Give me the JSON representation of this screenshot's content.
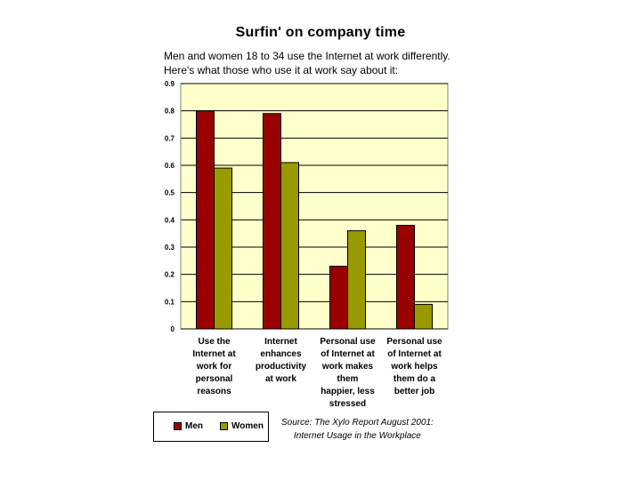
{
  "chart_data": {
    "type": "bar",
    "title": "Surfin' on company time",
    "subtitle_lines": [
      "Men and women 18 to 34 use the Internet at work differently.",
      "Here's what those who use it at work say about it:"
    ],
    "categories": [
      [
        "Use the",
        "Internet at",
        "work for",
        "personal",
        "reasons"
      ],
      [
        "Internet",
        "enhances",
        "productivity",
        "at work"
      ],
      [
        "Personal use",
        "of Internet at",
        "work makes",
        "them",
        "happier, less",
        "stressed"
      ],
      [
        "Personal use",
        "of Internet at",
        "work helps",
        "them do a",
        "better job"
      ]
    ],
    "series": [
      {
        "name": "Men",
        "color": "#990000",
        "values": [
          0.8,
          0.79,
          0.23,
          0.38
        ]
      },
      {
        "name": "Women",
        "color": "#999900",
        "values": [
          0.59,
          0.61,
          0.36,
          0.09
        ]
      }
    ],
    "yticks": [
      "0",
      "0.1",
      "0.2",
      "0.3",
      "0.4",
      "0.5",
      "0.6",
      "0.7",
      "0.8",
      "0.9"
    ],
    "ylim": [
      0,
      0.9
    ],
    "grid": true,
    "plot_background": "#ffffcc",
    "legend_position": "bottom-left",
    "source_lines": [
      "Source: The Xylo Report August 2001:",
      "Internet Usage in the Workplace"
    ]
  }
}
